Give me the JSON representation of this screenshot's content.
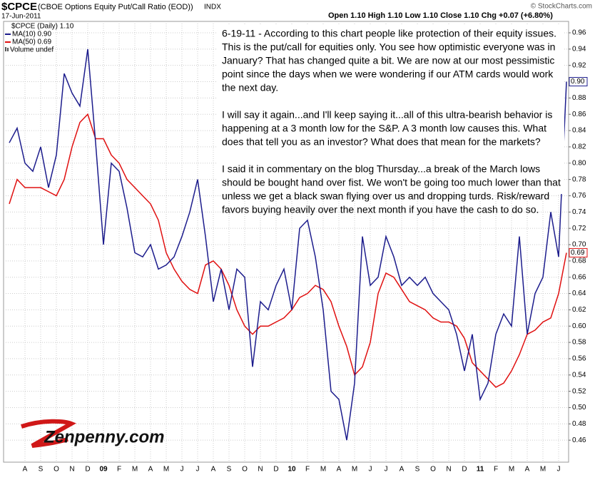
{
  "chart_data": {
    "type": "line",
    "symbol": "$CPCE",
    "title": "(CBOE Options Equity Put/Call Ratio (EOD))",
    "exchange": "INDX",
    "date": "17-Jun-2011",
    "quote": "Open 1.10  High 1.10  Low 1.10  Close 1.10  Chg +0.07 (+6.80%)",
    "credit": "© StockCharts.com",
    "legend_title": "$CPCE (Daily) 1.10",
    "volume_note": "Volume undef",
    "logo": "Zenpenny.com",
    "annotation": [
      [
        "6-19-11 - According to this chart people like protection of their equity issues.",
        "This is the put/call for equities only.  You see how optimistic everyone was in",
        "January? That has changed quite a bit. We are now at our most pessimistic",
        "point since the days when we were wondering if our ATM cards would work",
        "the next day."
      ],
      [
        "I will say it again...and I'll keep saying it...all of this ultra-bearish behavior is",
        "happening at a 3 month low for the S&P. A 3 month low causes this. What",
        "does that tell you as an investor? What does that mean for the markets?"
      ],
      [
        "I said it in commentary on the blog Thursday...a break of the March lows",
        "should be bought hand over fist. We won't be going too much lower than that",
        "unless we get a black swan flying over us and dropping turds. Risk/reward",
        "favors buying heavily over the next month if you have the cash to do so."
      ]
    ],
    "categories": [
      null,
      null,
      "A",
      null,
      "S",
      null,
      "O",
      null,
      "N",
      null,
      "D",
      null,
      "09",
      null,
      "F",
      null,
      "M",
      null,
      "A",
      null,
      "M",
      null,
      "J",
      null,
      "J",
      null,
      "A",
      null,
      "S",
      null,
      "O",
      null,
      "N",
      null,
      "D",
      null,
      "10",
      null,
      "F",
      null,
      "M",
      null,
      "A",
      null,
      "M",
      null,
      "J",
      null,
      "J",
      null,
      "A",
      null,
      "S",
      null,
      "O",
      null,
      "N",
      null,
      "D",
      null,
      "11",
      null,
      "F",
      null,
      "M",
      null,
      "A",
      null,
      "M",
      null,
      "J",
      null
    ],
    "series": [
      {
        "name": "MA(10) 0.90",
        "color": "#1c1c8c",
        "end_label": "0.90",
        "values": [
          0.825,
          0.843,
          0.8,
          0.79,
          0.82,
          0.77,
          0.81,
          0.91,
          0.886,
          0.87,
          0.94,
          0.825,
          0.7,
          0.8,
          0.79,
          0.745,
          0.69,
          0.685,
          0.7,
          0.67,
          0.675,
          0.685,
          0.71,
          0.74,
          0.78,
          0.71,
          0.63,
          0.67,
          0.62,
          0.67,
          0.66,
          0.55,
          0.63,
          0.62,
          0.65,
          0.67,
          0.62,
          0.72,
          0.73,
          0.685,
          0.62,
          0.52,
          0.51,
          0.46,
          0.53,
          0.71,
          0.65,
          0.66,
          0.71,
          0.685,
          0.65,
          0.66,
          0.65,
          0.66,
          0.64,
          0.63,
          0.62,
          0.59,
          0.545,
          0.59,
          0.51,
          0.53,
          0.59,
          0.615,
          0.6,
          0.71,
          0.59,
          0.64,
          0.66,
          0.74,
          0.685,
          0.9
        ]
      },
      {
        "name": "MA(50) 0.69",
        "color": "#e01010",
        "end_label": "0.69",
        "values": [
          0.75,
          0.78,
          0.77,
          0.77,
          0.77,
          0.765,
          0.76,
          0.78,
          0.82,
          0.85,
          0.86,
          0.83,
          0.83,
          0.81,
          0.8,
          0.78,
          0.77,
          0.76,
          0.75,
          0.73,
          0.69,
          0.67,
          0.655,
          0.645,
          0.64,
          0.675,
          0.68,
          0.67,
          0.65,
          0.62,
          0.6,
          0.59,
          0.6,
          0.6,
          0.605,
          0.61,
          0.62,
          0.635,
          0.64,
          0.65,
          0.645,
          0.63,
          0.6,
          0.575,
          0.54,
          0.55,
          0.58,
          0.64,
          0.665,
          0.66,
          0.645,
          0.63,
          0.625,
          0.62,
          0.61,
          0.605,
          0.605,
          0.6,
          0.585,
          0.555,
          0.545,
          0.535,
          0.525,
          0.53,
          0.545,
          0.565,
          0.59,
          0.595,
          0.605,
          0.61,
          0.64,
          0.69
        ]
      }
    ],
    "ylim": [
      0.433,
      0.974
    ],
    "yticks": [
      0.46,
      0.48,
      {
        "value": 0.5,
        "label": "0.50"
      },
      0.52,
      0.54,
      0.56,
      0.58,
      {
        "value": 0.6,
        "label": "0.60"
      },
      0.62,
      0.64,
      0.66,
      0.68,
      {
        "value": 0.7,
        "label": "0.70"
      },
      0.72,
      0.74,
      0.76,
      0.78,
      {
        "value": 0.8,
        "label": "0.80"
      },
      0.82,
      0.84,
      0.86,
      0.88,
      {
        "value": 0.9,
        "label": "0.90"
      },
      0.92,
      0.94,
      0.96
    ],
    "grid": true
  }
}
